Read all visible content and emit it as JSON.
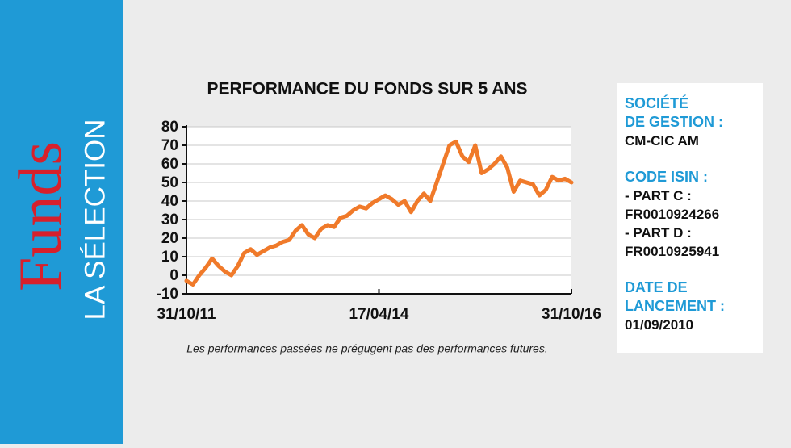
{
  "banner": {
    "title": "Funds",
    "subtitle": "LA SÉLECTION"
  },
  "chart_data": {
    "type": "line",
    "title": "PERFORMANCE DU FONDS SUR 5 ANS",
    "note": "Les performances passées ne prégugent pas des performances futures.",
    "categories": [
      "31/10/11",
      null,
      null,
      null,
      null,
      null,
      null,
      null,
      null,
      null,
      null,
      null,
      null,
      null,
      null,
      null,
      null,
      null,
      null,
      null,
      null,
      null,
      null,
      null,
      null,
      null,
      null,
      null,
      null,
      null,
      "17/04/14",
      null,
      null,
      null,
      null,
      null,
      null,
      null,
      null,
      null,
      null,
      null,
      null,
      null,
      null,
      null,
      null,
      null,
      null,
      null,
      null,
      null,
      null,
      null,
      null,
      null,
      null,
      null,
      null,
      null,
      "31/10/16"
    ],
    "values": [
      -3,
      -5,
      0,
      4,
      9,
      5,
      2,
      0,
      5,
      12,
      14,
      11,
      13,
      15,
      16,
      18,
      19,
      24,
      27,
      22,
      20,
      25,
      27,
      26,
      31,
      32,
      35,
      37,
      36,
      39,
      41,
      43,
      41,
      38,
      40,
      34,
      40,
      44,
      40,
      50,
      60,
      70,
      72,
      64,
      61,
      70,
      55,
      57,
      60,
      64,
      58,
      45,
      51,
      50,
      49,
      43,
      46,
      53,
      51,
      52,
      50
    ],
    "color": "#f07a2a",
    "ylim": [
      -10,
      80
    ],
    "yticks": [
      -10,
      0,
      10,
      20,
      30,
      40,
      50,
      60,
      70,
      80
    ],
    "grid": true
  },
  "info": {
    "company_label": [
      "SOCIÉTÉ",
      "DE GESTION :"
    ],
    "company": "CM-CIC AM",
    "isin_label": "CODE ISIN :",
    "isin": [
      "- PART C :",
      "FR0010924266",
      "- PART D :",
      "FR0010925941"
    ],
    "date_label": [
      "DATE DE",
      "LANCEMENT :"
    ],
    "date": "01/09/2010"
  }
}
